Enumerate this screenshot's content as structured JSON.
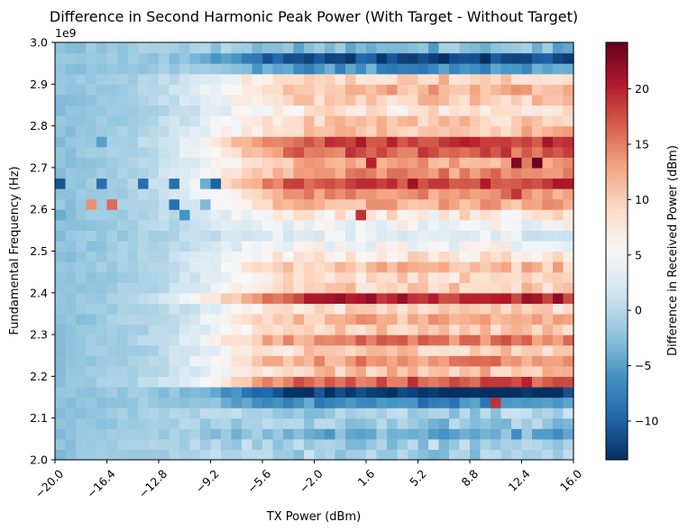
{
  "chart_data": {
    "type": "heatmap",
    "title": "Difference in Second Harmonic Peak Power (With Target - Without Target)",
    "xlabel": "TX Power (dBm)",
    "ylabel": "Fundamental Frequency (Hz)",
    "y_exponent_label": "1e9",
    "colorbar_label": "Difference in Received Power (dBm)",
    "colormap": "RdBu_r",
    "colormap_stops": [
      "#053061",
      "#2166ac",
      "#4393c3",
      "#92c5de",
      "#d1e5f0",
      "#f7f7f7",
      "#fddbc7",
      "#f4a582",
      "#d6604d",
      "#b2182b",
      "#67001f"
    ],
    "xlim": [
      -20.0,
      16.0
    ],
    "ylim": [
      2.0,
      3.0
    ],
    "x_ticks": [
      -20.0,
      -16.4,
      -12.8,
      -9.2,
      -5.6,
      -2.0,
      1.6,
      5.2,
      8.8,
      12.4,
      16.0
    ],
    "x_tick_labels": [
      "−20.0",
      "−16.4",
      "−12.8",
      "−9.2",
      "−5.6",
      "−2.0",
      "1.6",
      "5.2",
      "8.8",
      "12.4",
      "16.0"
    ],
    "y_ticks": [
      2.0,
      2.1,
      2.2,
      2.3,
      2.4,
      2.5,
      2.6,
      2.7,
      2.8,
      2.9,
      3.0
    ],
    "y_tick_labels": [
      "2.0",
      "2.1",
      "2.2",
      "2.3",
      "2.4",
      "2.5",
      "2.6",
      "2.7",
      "2.8",
      "2.9",
      "3.0"
    ],
    "colorbar_range": [
      -13.5,
      24.2
    ],
    "colorbar_ticks": [
      -10,
      -5,
      0,
      5,
      10,
      15,
      20
    ],
    "colorbar_tick_labels": [
      "−10",
      "−5",
      "0",
      "5",
      "10",
      "15",
      "20"
    ],
    "grid": false,
    "x_count": 50,
    "x_start": -20.0,
    "x_step": 0.72,
    "y_count": 40,
    "y_start": 2.0,
    "y_step": 0.025,
    "row_saturation_values": [
      -1,
      -1,
      -4,
      -2,
      -1,
      -7,
      -13,
      17,
      11,
      14,
      10,
      15,
      10,
      12,
      9,
      20,
      10,
      9,
      11,
      8,
      5,
      3,
      5,
      8,
      12,
      14,
      19,
      14,
      13,
      17,
      19,
      11,
      10,
      8,
      10,
      12,
      10,
      -6,
      -12,
      -3
    ],
    "hotspots": [
      {
        "x": 2.0,
        "y": 2.7125,
        "value": 20
      },
      {
        "x": 12.0,
        "y": 2.7125,
        "value": 23
      },
      {
        "x": 13.5,
        "y": 2.7125,
        "value": 24
      },
      {
        "x": 12.0,
        "y": 2.6375,
        "value": 19
      },
      {
        "x": 1.2,
        "y": 2.5875,
        "value": 19
      },
      {
        "x": 6.0,
        "y": 2.5875,
        "value": 4
      },
      {
        "x": 11.0,
        "y": 2.5875,
        "value": 5
      },
      {
        "x": 12.6,
        "y": 2.1875,
        "value": 20
      },
      {
        "x": 10.5,
        "y": 2.1375,
        "value": 19
      }
    ],
    "low_power_anomalies": [
      {
        "x": -19.6,
        "y": 2.6625,
        "value": -11
      },
      {
        "x": -16.8,
        "y": 2.6625,
        "value": -9
      },
      {
        "x": -13.9,
        "y": 2.6625,
        "value": -9
      },
      {
        "x": -11.8,
        "y": 2.6625,
        "value": -9
      },
      {
        "x": -8.9,
        "y": 2.6625,
        "value": -10
      },
      {
        "x": -9.6,
        "y": 2.6625,
        "value": -4
      },
      {
        "x": -17.6,
        "y": 2.6125,
        "value": 14
      },
      {
        "x": -16.0,
        "y": 2.6125,
        "value": 16
      },
      {
        "x": -11.8,
        "y": 2.6125,
        "value": -9
      },
      {
        "x": -9.8,
        "y": 2.6125,
        "value": -3
      },
      {
        "x": -19.6,
        "y": 2.5875,
        "value": -4
      },
      {
        "x": -11.0,
        "y": 2.5875,
        "value": -6
      },
      {
        "x": -16.8,
        "y": 2.7625,
        "value": -5
      },
      {
        "x": -19.6,
        "y": 2.7375,
        "value": -2
      }
    ]
  }
}
